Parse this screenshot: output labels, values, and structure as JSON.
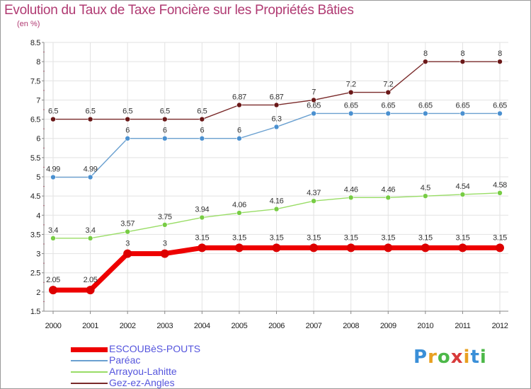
{
  "title": "Evolution du Taux de Taxe Foncière sur les Propriétés Bâties",
  "unit_label": "(en %)",
  "chart_data": {
    "type": "line",
    "title": "Evolution du Taux de Taxe Foncière sur les Propriétés Bâties",
    "ylabel": "(en %)",
    "x": [
      "2000",
      "2001",
      "2002",
      "2003",
      "2004",
      "2005",
      "2006",
      "2007",
      "2008",
      "2009",
      "2010",
      "2011",
      "2012"
    ],
    "ylim": [
      1.5,
      8.5
    ],
    "yticks": [
      "1.5",
      "2",
      "2.5",
      "3",
      "3.5",
      "4",
      "4.5",
      "5",
      "5.5",
      "6",
      "6.5",
      "7",
      "7.5",
      "8",
      "8.5"
    ],
    "grid": true,
    "legend_position": "bottom-left",
    "series": [
      {
        "name": "ESCOUBèS-POUTS",
        "color": "#ee0000",
        "marker": "#dd0000",
        "width": 7,
        "r": 6,
        "values": [
          2.05,
          2.05,
          3,
          3,
          3.15,
          3.15,
          3.15,
          3.15,
          3.15,
          3.15,
          3.15,
          3.15,
          3.15
        ],
        "labels": [
          "2.05",
          "2.05",
          "3",
          "3",
          "3.15",
          "3.15",
          "3.15",
          "3.15",
          "3.15",
          "3.15",
          "3.15",
          "3.15",
          "3.15"
        ]
      },
      {
        "name": "Paréac",
        "color": "#6aa0d0",
        "marker": "#4a90d0",
        "width": 1.4,
        "r": 3.5,
        "values": [
          4.99,
          4.99,
          6,
          6,
          6,
          6,
          6.3,
          6.65,
          6.65,
          6.65,
          6.65,
          6.65,
          6.65
        ],
        "labels": [
          "4.99",
          "4.99",
          "6",
          "6",
          "6",
          "6",
          "6.3",
          "6.65",
          "6.65",
          "6.65",
          "6.65",
          "6.65",
          "6.65"
        ]
      },
      {
        "name": "Arrayou-Lahitte",
        "color": "#99dd66",
        "marker": "#77cc44",
        "width": 1.4,
        "r": 3.5,
        "values": [
          3.4,
          3.4,
          3.57,
          3.75,
          3.94,
          4.06,
          4.16,
          4.37,
          4.46,
          4.46,
          4.5,
          4.54,
          4.58
        ],
        "labels": [
          "3.4",
          "3.4",
          "3.57",
          "3.75",
          "3.94",
          "4.06",
          "4.16",
          "4.37",
          "4.46",
          "4.46",
          "4.5",
          "4.54",
          "4.58"
        ]
      },
      {
        "name": "Gez-ez-Angles",
        "color": "#7a2a2a",
        "marker": "#6a1818",
        "width": 1.4,
        "r": 3.5,
        "values": [
          6.5,
          6.5,
          6.5,
          6.5,
          6.5,
          6.87,
          6.87,
          7,
          7.2,
          7.2,
          8,
          8,
          8
        ],
        "labels": [
          "6.5",
          "6.5",
          "6.5",
          "6.5",
          "6.5",
          "6.87",
          "6.87",
          "7",
          "7.2",
          "7.2",
          "8",
          "8",
          "8"
        ]
      }
    ]
  },
  "legend": {
    "items": [
      "ESCOUBèS-POUTS",
      "Paréac",
      "Arrayou-Lahitte",
      "Gez-ez-Angles"
    ],
    "text_color": "#5555dd"
  },
  "logo": {
    "letters": [
      "P",
      "r",
      "o",
      "x",
      "i",
      "t",
      "i"
    ],
    "colors": [
      "#3a8fd8",
      "#e8a020",
      "#4cb848",
      "#d83a3a",
      "#e8a020",
      "#3a8fd8",
      "#4cb848"
    ]
  }
}
